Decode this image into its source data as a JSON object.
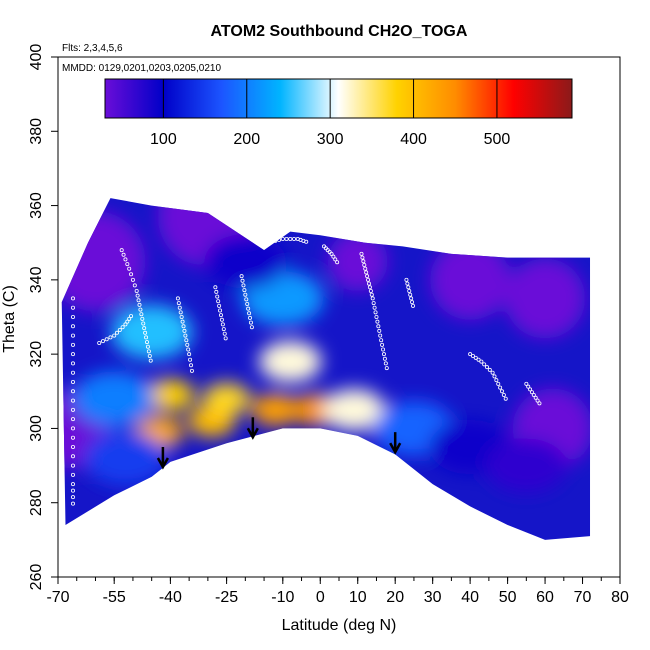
{
  "chart_data": {
    "type": "heatmap",
    "title": "ATOM2 Southbound CH2O_TOGA",
    "flights_label": "Flts: 2,3,4,5,6",
    "dates_label": "MMDD: 0129,0201,0203,0205,0210",
    "xlabel": "Latitude (deg N)",
    "ylabel": "Theta (C)",
    "xlim": [
      -70,
      80
    ],
    "ylim": [
      260,
      400
    ],
    "x_ticks": [
      -70,
      -55,
      -40,
      -25,
      -10,
      0,
      10,
      20,
      30,
      40,
      50,
      60,
      70,
      80
    ],
    "y_ticks": [
      260,
      280,
      300,
      320,
      340,
      360,
      380,
      400
    ],
    "colorbar": {
      "range": [
        30,
        590
      ],
      "ticks": [
        100,
        200,
        300,
        400,
        500
      ],
      "colors": [
        "#6a0dd8",
        "#0000c8",
        "#1c55ff",
        "#00b4ff",
        "#ffffff",
        "#ffd200",
        "#ff8c00",
        "#ff0000",
        "#8b1a1a"
      ]
    },
    "data_top_theta": [
      {
        "lat": -69,
        "theta": 334
      },
      {
        "lat": -62,
        "theta": 350
      },
      {
        "lat": -56,
        "theta": 362
      },
      {
        "lat": -45,
        "theta": 360
      },
      {
        "lat": -30,
        "theta": 358
      },
      {
        "lat": -15,
        "theta": 348
      },
      {
        "lat": -8,
        "theta": 353
      },
      {
        "lat": 0,
        "theta": 352
      },
      {
        "lat": 12,
        "theta": 350
      },
      {
        "lat": 22,
        "theta": 349
      },
      {
        "lat": 35,
        "theta": 347
      },
      {
        "lat": 50,
        "theta": 346
      },
      {
        "lat": 62,
        "theta": 346
      },
      {
        "lat": 72,
        "theta": 346
      }
    ],
    "data_bottom_theta": [
      {
        "lat": -68,
        "theta": 274
      },
      {
        "lat": -55,
        "theta": 282
      },
      {
        "lat": -45,
        "theta": 287
      },
      {
        "lat": -40,
        "theta": 291
      },
      {
        "lat": -25,
        "theta": 296
      },
      {
        "lat": -10,
        "theta": 300
      },
      {
        "lat": 0,
        "theta": 300
      },
      {
        "lat": 10,
        "theta": 298
      },
      {
        "lat": 20,
        "theta": 293
      },
      {
        "lat": 30,
        "theta": 285
      },
      {
        "lat": 40,
        "theta": 279
      },
      {
        "lat": 50,
        "theta": 274
      },
      {
        "lat": 60,
        "theta": 270
      },
      {
        "lat": 72,
        "theta": 271
      }
    ],
    "blobs": [
      {
        "lat": -43,
        "theta": 299,
        "value": 420
      },
      {
        "lat": -29,
        "theta": 302,
        "value": 400
      },
      {
        "lat": -40,
        "theta": 309,
        "value": 380
      },
      {
        "lat": -25,
        "theta": 308,
        "value": 370
      },
      {
        "lat": -12,
        "theta": 305,
        "value": 430
      },
      {
        "lat": -1,
        "theta": 305,
        "value": 440
      },
      {
        "lat": -8,
        "theta": 318,
        "value": 320
      },
      {
        "lat": 9,
        "theta": 305,
        "value": 320
      },
      {
        "lat": -45,
        "theta": 326,
        "value": 250
      },
      {
        "lat": -10,
        "theta": 335,
        "value": 220
      },
      {
        "lat": -55,
        "theta": 308,
        "value": 200
      },
      {
        "lat": 25,
        "theta": 300,
        "value": 180
      },
      {
        "lat": -52,
        "theta": 292,
        "value": 150
      },
      {
        "lat": 40,
        "theta": 295,
        "value": 90
      },
      {
        "lat": 55,
        "theta": 290,
        "value": 70
      },
      {
        "lat": -20,
        "theta": 345,
        "value": 90
      }
    ],
    "arrows": [
      {
        "lat": -42,
        "theta": 295
      },
      {
        "lat": -18,
        "theta": 303
      },
      {
        "lat": 20,
        "theta": 299
      }
    ],
    "sample_tracks": [
      [
        [
          -59,
          323
        ],
        [
          -55,
          325
        ],
        [
          -52,
          328
        ],
        [
          -50,
          331
        ]
      ],
      [
        [
          -53,
          348
        ],
        [
          -51,
          343
        ],
        [
          -49,
          337
        ],
        [
          -48,
          332
        ],
        [
          -47,
          327
        ],
        [
          -46,
          322
        ],
        [
          -45,
          317
        ]
      ],
      [
        [
          -38,
          335
        ],
        [
          -37,
          330
        ],
        [
          -36,
          325
        ],
        [
          -35,
          320
        ],
        [
          -34,
          314
        ]
      ],
      [
        [
          -28,
          338
        ],
        [
          -27,
          333
        ],
        [
          -26,
          328
        ],
        [
          -25,
          323
        ]
      ],
      [
        [
          -21,
          341
        ],
        [
          -20,
          336
        ],
        [
          -19,
          331
        ],
        [
          -18,
          326
        ]
      ],
      [
        [
          -14,
          350
        ],
        [
          -10,
          351
        ],
        [
          -6,
          351
        ],
        [
          -3,
          350
        ]
      ],
      [
        [
          1,
          349
        ],
        [
          3,
          347
        ],
        [
          5,
          344
        ]
      ],
      [
        [
          11,
          347
        ],
        [
          12,
          343
        ],
        [
          13,
          339
        ],
        [
          14,
          335
        ],
        [
          15,
          330
        ],
        [
          16,
          325
        ],
        [
          17,
          320
        ],
        [
          18,
          315
        ]
      ],
      [
        [
          23,
          340
        ],
        [
          24,
          336
        ],
        [
          25,
          332
        ]
      ],
      [
        [
          40,
          320
        ],
        [
          43,
          318
        ],
        [
          46,
          315
        ],
        [
          48,
          311
        ],
        [
          50,
          307
        ]
      ],
      [
        [
          55,
          312
        ],
        [
          57,
          309
        ],
        [
          59,
          306
        ]
      ],
      [
        [
          -66,
          335
        ],
        [
          -66,
          325
        ],
        [
          -66,
          315
        ],
        [
          -66,
          305
        ],
        [
          -66,
          295
        ],
        [
          -66,
          285
        ],
        [
          -66,
          278
        ]
      ]
    ]
  }
}
